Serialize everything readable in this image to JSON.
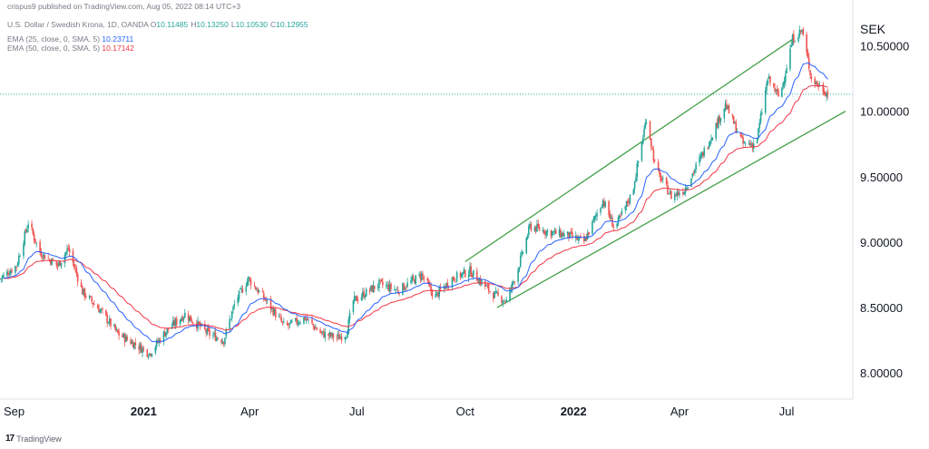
{
  "header": {
    "published": "crispus9 published on TradingView.com, Aug 05, 2022 08:14 UTC+3",
    "pair": "U.S. Dollar / Swedish Krona, 1D, OANDA",
    "ohlc": [
      {
        "label": "O",
        "value": "10.11485"
      },
      {
        "label": "H",
        "value": "10.13250"
      },
      {
        "label": "L",
        "value": "10.10530"
      },
      {
        "label": "C",
        "value": "10.12955"
      }
    ],
    "ema25_label": "EMA (25, close, 0, SMA, 5)",
    "ema25_value": "10.23711",
    "ema50_label": "EMA (50, close, 0, SMA, 5)",
    "ema50_value": "10.17142"
  },
  "currency": "SEK",
  "brand": "TradingView",
  "colors": {
    "up": "#26a69a",
    "down": "#ef5350",
    "ema25": "#2962ff",
    "ema50": "#f23645",
    "channel": "#43a047",
    "priceline": "#26a69a"
  },
  "chart_data": {
    "type": "line",
    "title": "U.S. Dollar / Swedish Krona, 1D, OANDA",
    "ylabel": "SEK",
    "ylim": [
      7.8,
      10.85
    ],
    "y_ticks": [
      "8.00000",
      "8.50000",
      "9.00000",
      "9.50000",
      "10.00000",
      "10.50000"
    ],
    "x_range": [
      "2020-09-01",
      "2022-08-20"
    ],
    "x_ticks": [
      {
        "date": "2020-09-01",
        "label": "Sep",
        "bold": false
      },
      {
        "date": "2021-01-01",
        "label": "2021",
        "bold": true
      },
      {
        "date": "2021-04-01",
        "label": "Apr",
        "bold": false
      },
      {
        "date": "2021-07-01",
        "label": "Jul",
        "bold": false
      },
      {
        "date": "2021-10-01",
        "label": "Oct",
        "bold": false
      },
      {
        "date": "2022-01-01",
        "label": "2022",
        "bold": true
      },
      {
        "date": "2022-04-01",
        "label": "Apr",
        "bold": false
      },
      {
        "date": "2022-07-01",
        "label": "Jul",
        "bold": false
      }
    ],
    "last_close": 10.12955,
    "price_keypoints": [
      [
        "2020-09-01",
        8.72
      ],
      [
        "2020-09-15",
        8.82
      ],
      [
        "2020-09-25",
        9.15
      ],
      [
        "2020-10-05",
        8.92
      ],
      [
        "2020-10-20",
        8.82
      ],
      [
        "2020-10-29",
        8.95
      ],
      [
        "2020-11-10",
        8.62
      ],
      [
        "2020-11-25",
        8.48
      ],
      [
        "2020-12-10",
        8.3
      ],
      [
        "2020-12-28",
        8.2
      ],
      [
        "2021-01-06",
        8.15
      ],
      [
        "2021-01-20",
        8.32
      ],
      [
        "2021-02-05",
        8.45
      ],
      [
        "2021-02-25",
        8.3
      ],
      [
        "2021-03-10",
        8.25
      ],
      [
        "2021-03-20",
        8.55
      ],
      [
        "2021-03-31",
        8.72
      ],
      [
        "2021-04-15",
        8.55
      ],
      [
        "2021-05-01",
        8.35
      ],
      [
        "2021-05-18",
        8.42
      ],
      [
        "2021-06-01",
        8.3
      ],
      [
        "2021-06-15",
        8.27
      ],
      [
        "2021-06-22",
        8.3
      ],
      [
        "2021-06-28",
        8.55
      ],
      [
        "2021-07-20",
        8.68
      ],
      [
        "2021-08-05",
        8.63
      ],
      [
        "2021-08-25",
        8.75
      ],
      [
        "2021-09-05",
        8.58
      ],
      [
        "2021-09-20",
        8.72
      ],
      [
        "2021-10-05",
        8.78
      ],
      [
        "2021-10-25",
        8.6
      ],
      [
        "2021-11-05",
        8.55
      ],
      [
        "2021-11-15",
        8.8
      ],
      [
        "2021-11-25",
        9.12
      ],
      [
        "2021-12-10",
        9.08
      ],
      [
        "2021-12-28",
        9.05
      ],
      [
        "2022-01-10",
        9.0
      ],
      [
        "2022-01-26",
        9.32
      ],
      [
        "2022-02-05",
        9.1
      ],
      [
        "2022-02-20",
        9.38
      ],
      [
        "2022-03-04",
        9.95
      ],
      [
        "2022-03-12",
        9.55
      ],
      [
        "2022-03-25",
        9.35
      ],
      [
        "2022-04-05",
        9.4
      ],
      [
        "2022-04-25",
        9.75
      ],
      [
        "2022-05-10",
        10.05
      ],
      [
        "2022-05-25",
        9.75
      ],
      [
        "2022-06-05",
        9.75
      ],
      [
        "2022-06-15",
        10.25
      ],
      [
        "2022-06-25",
        10.1
      ],
      [
        "2022-07-06",
        10.55
      ],
      [
        "2022-07-14",
        10.62
      ],
      [
        "2022-07-22",
        10.25
      ],
      [
        "2022-08-05",
        10.13
      ]
    ],
    "series": [
      {
        "name": "EMA (25, close, 0, SMA, 5)",
        "last": 10.23711
      },
      {
        "name": "EMA (50, close, 0, SMA, 5)",
        "last": 10.17142
      }
    ],
    "trend_lines": [
      {
        "name": "channel-upper",
        "from": [
          "2021-10-01",
          8.85
        ],
        "to": [
          "2022-07-06",
          10.55
        ]
      },
      {
        "name": "channel-lower",
        "from": [
          "2021-10-28",
          8.5
        ],
        "to": [
          "2022-08-20",
          10.0
        ]
      }
    ]
  }
}
